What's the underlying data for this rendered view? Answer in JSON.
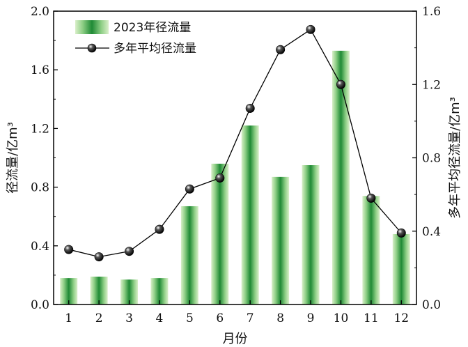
{
  "chart_data": {
    "type": "bar+line",
    "categories": [
      "1",
      "2",
      "3",
      "4",
      "5",
      "6",
      "7",
      "8",
      "9",
      "10",
      "11",
      "12"
    ],
    "series": [
      {
        "name": "2023年径流量",
        "type": "bar",
        "axis": "left",
        "values": [
          0.18,
          0.19,
          0.17,
          0.18,
          0.67,
          0.96,
          1.22,
          0.87,
          0.95,
          1.73,
          0.74,
          0.48
        ],
        "color": "#2e9e3e"
      },
      {
        "name": "多年平均径流量",
        "type": "line",
        "axis": "right",
        "values": [
          0.3,
          0.26,
          0.29,
          0.41,
          0.63,
          0.69,
          1.07,
          1.39,
          1.5,
          1.2,
          0.58,
          0.39
        ],
        "color": "#000000"
      }
    ],
    "xlabel": "月份",
    "ylabel_left": "径流量/亿m³",
    "ylabel_right": "多年平均径流量/亿m³",
    "ylim_left": [
      0,
      2.0
    ],
    "ylim_right": [
      0,
      1.6
    ],
    "yticks_left": [
      "0.0",
      "0.4",
      "0.8",
      "1.2",
      "1.6",
      "2.0"
    ],
    "yticks_right": [
      "0.0",
      "0.4",
      "0.8",
      "1.2",
      "1.6"
    ],
    "grid": false,
    "legend_position": "top-left"
  }
}
